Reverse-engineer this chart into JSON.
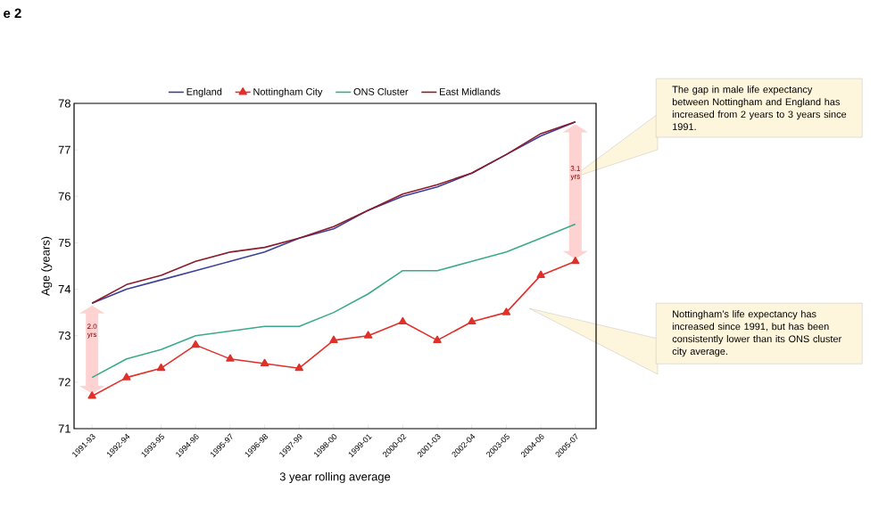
{
  "chart_data": {
    "type": "line",
    "title": "e 2",
    "xlabel": "3 year rolling average",
    "ylabel": "Age (years)",
    "categories": [
      "1991-93",
      "1992-94",
      "1993-95",
      "1994-96",
      "1995-97",
      "1996-98",
      "1997-99",
      "1998-00",
      "1999-01",
      "2000-02",
      "2001-03",
      "2002-04",
      "2003-05",
      "2004-06",
      "2005-07"
    ],
    "series": [
      {
        "name": "England",
        "color": "#3a3f9a",
        "values": [
          73.7,
          74.0,
          74.2,
          74.4,
          74.6,
          74.8,
          75.1,
          75.3,
          75.7,
          76.0,
          76.2,
          76.5,
          76.9,
          77.3,
          77.6
        ]
      },
      {
        "name": "Nottingham City",
        "color": "#e0302a",
        "marker": "triangle",
        "values": [
          71.7,
          72.1,
          72.3,
          72.8,
          72.5,
          72.4,
          72.3,
          72.9,
          73.0,
          73.3,
          72.9,
          73.3,
          73.5,
          74.3,
          74.6
        ]
      },
      {
        "name": "ONS Cluster",
        "color": "#3aaa8a",
        "values": [
          72.1,
          72.5,
          72.7,
          73.0,
          73.1,
          73.2,
          73.2,
          73.5,
          73.9,
          74.4,
          74.4,
          74.6,
          74.8,
          75.1,
          75.4
        ]
      },
      {
        "name": "East Midlands",
        "color": "#8b1a2a",
        "values": [
          73.7,
          74.1,
          74.3,
          74.6,
          74.8,
          74.9,
          75.1,
          75.35,
          75.7,
          76.05,
          76.25,
          76.5,
          76.9,
          77.35,
          77.6
        ]
      }
    ],
    "ylim": [
      71,
      78
    ],
    "yticks": [
      71,
      72,
      73,
      74,
      75,
      76,
      77,
      78
    ],
    "legend": "top",
    "grid": false,
    "annotations": [
      "2.0 yrs",
      "3.1 yrs",
      "The gap in male life expectancy between Nottingham and England has increased from 2 years to 3 years since 1991.",
      "Nottingham’s life expectancy has increased since 1991, but has been consistently lower than its ONS cluster city average."
    ]
  }
}
